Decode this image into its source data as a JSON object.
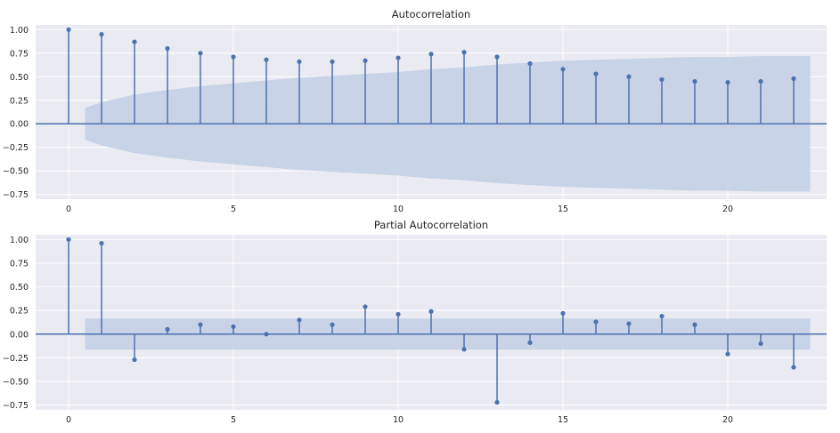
{
  "chart_data": [
    {
      "type": "stem",
      "title": "Autocorrelation",
      "x": [
        0,
        1,
        2,
        3,
        4,
        5,
        6,
        7,
        8,
        9,
        10,
        11,
        12,
        13,
        14,
        15,
        16,
        17,
        18,
        19,
        20,
        21,
        22
      ],
      "values": [
        1.0,
        0.95,
        0.87,
        0.8,
        0.75,
        0.71,
        0.68,
        0.66,
        0.66,
        0.67,
        0.7,
        0.74,
        0.76,
        0.71,
        0.64,
        0.58,
        0.53,
        0.5,
        0.47,
        0.45,
        0.44,
        0.45,
        0.48
      ],
      "confidence_band": {
        "x": [
          0.5,
          1,
          2,
          3,
          4,
          5,
          6,
          7,
          8,
          9,
          10,
          11,
          12,
          13,
          14,
          15,
          16,
          17,
          18,
          19,
          20,
          21,
          22,
          22.5
        ],
        "upper": [
          0.17,
          0.23,
          0.31,
          0.36,
          0.4,
          0.43,
          0.46,
          0.49,
          0.51,
          0.53,
          0.55,
          0.58,
          0.6,
          0.63,
          0.65,
          0.67,
          0.68,
          0.69,
          0.7,
          0.71,
          0.71,
          0.72,
          0.72,
          0.72
        ]
      },
      "xlim": [
        -1.0,
        23.0
      ],
      "ylim": [
        -0.8,
        1.05
      ],
      "xticks": [
        0,
        5,
        10,
        15,
        20
      ],
      "xtick_labels": [
        "0",
        "5",
        "10",
        "15",
        "20"
      ],
      "yticks": [
        1.0,
        0.75,
        0.5,
        0.25,
        0.0,
        -0.25,
        -0.5,
        -0.75
      ],
      "ytick_labels": [
        "1.00",
        "0.75",
        "0.50",
        "0.25",
        "0.00",
        "−0.25",
        "−0.50",
        "−0.75"
      ],
      "grid": true,
      "colors": {
        "line": "#4c72b0",
        "band": "#c5d0e6",
        "background": "#eaeaf2",
        "grid": "#ffffff"
      }
    },
    {
      "type": "stem",
      "title": "Partial Autocorrelation",
      "x": [
        0,
        1,
        2,
        3,
        4,
        5,
        6,
        7,
        8,
        9,
        10,
        11,
        12,
        13,
        14,
        15,
        16,
        17,
        18,
        19,
        20,
        21,
        22
      ],
      "values": [
        1.0,
        0.96,
        -0.27,
        0.05,
        0.1,
        0.08,
        0.0,
        0.15,
        0.1,
        0.29,
        0.21,
        0.24,
        -0.16,
        -0.72,
        -0.09,
        0.22,
        0.13,
        0.11,
        0.19,
        0.1,
        -0.21,
        -0.1,
        -0.35
      ],
      "confidence_band": {
        "x": [
          0.5,
          22.5
        ],
        "upper": [
          0.165,
          0.165
        ]
      },
      "xlim": [
        -1.0,
        23.0
      ],
      "ylim": [
        -0.8,
        1.05
      ],
      "xticks": [
        0,
        5,
        10,
        15,
        20
      ],
      "xtick_labels": [
        "0",
        "5",
        "10",
        "15",
        "20"
      ],
      "yticks": [
        1.0,
        0.75,
        0.5,
        0.25,
        0.0,
        -0.25,
        -0.5,
        -0.75
      ],
      "ytick_labels": [
        "1.00",
        "0.75",
        "0.50",
        "0.25",
        "0.00",
        "−0.25",
        "−0.50",
        "−0.75"
      ],
      "grid": true,
      "colors": {
        "line": "#4c72b0",
        "band": "#c5d0e6",
        "background": "#eaeaf2",
        "grid": "#ffffff"
      }
    }
  ]
}
